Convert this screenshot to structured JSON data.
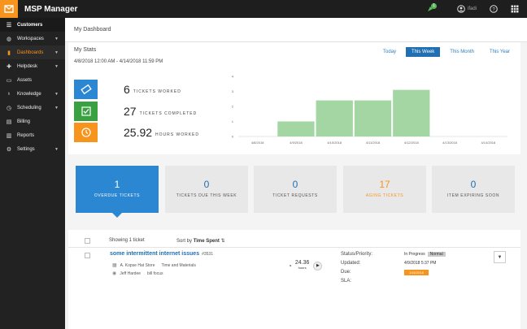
{
  "app": {
    "title": "MSP Manager",
    "notification_count": "1",
    "user_name": "ifadi"
  },
  "sidebar": {
    "items": [
      {
        "label": "Customers",
        "icon": "list-icon",
        "type": "header"
      },
      {
        "label": "Workspaces",
        "icon": "globe-icon",
        "chev": true
      },
      {
        "label": "Dashboards",
        "icon": "bar-chart-icon",
        "chev": true,
        "active": true
      },
      {
        "label": "Helpdesk",
        "icon": "ticket-icon",
        "chev": true
      },
      {
        "label": "Assets",
        "icon": "monitor-icon"
      },
      {
        "label": "Knowledge",
        "icon": "lightbulb-icon",
        "chev": true
      },
      {
        "label": "Scheduling",
        "icon": "clock-icon",
        "chev": true
      },
      {
        "label": "Billing",
        "icon": "card-icon"
      },
      {
        "label": "Reports",
        "icon": "report-icon"
      },
      {
        "label": "Settings",
        "icon": "gear-icon",
        "chev": true
      }
    ]
  },
  "page": {
    "title": "My Dashboard"
  },
  "stats": {
    "title": "My Stats",
    "date_range": "4/8/2018 12:00 AM - 4/14/2018 11:59 PM",
    "periods": [
      "Today",
      "This Week",
      "This Month",
      "This Year"
    ],
    "active_period": "This Week",
    "tickets_worked": {
      "value": "6",
      "label": "TICKETS WORKED"
    },
    "tickets_completed": {
      "value": "27",
      "label": "TICKETS COMPLETED"
    },
    "hours_worked": {
      "value": "25.92",
      "label": "HOURS WORKED"
    }
  },
  "chart_data": {
    "type": "bar",
    "categories": [
      "4/8/2018",
      "4/9/2018",
      "4/10/2018",
      "4/11/2018",
      "4/12/2018",
      "4/13/2018",
      "4/14/2018"
    ],
    "values": [
      0,
      1.0,
      2.4,
      2.4,
      3.1,
      0,
      0
    ],
    "yticks": [
      "0",
      "1",
      "2",
      "3",
      "4"
    ],
    "ylim": [
      0,
      4
    ],
    "color": "#a3d6a3"
  },
  "cards": [
    {
      "value": "1",
      "label": "OVERDUE TICKETS",
      "state": "active"
    },
    {
      "value": "0",
      "label": "TICKETS DUE THIS WEEK",
      "state": ""
    },
    {
      "value": "0",
      "label": "TICKET REQUESTS",
      "state": ""
    },
    {
      "value": "17",
      "label": "AGING TICKETS",
      "state": "orange"
    },
    {
      "value": "0",
      "label": "ITEM EXPIRING SOON",
      "state": ""
    }
  ],
  "list": {
    "showing": "Showing 1 ticket",
    "sort_prefix": "Sort by",
    "sort_field": "Time Spent",
    "ticket": {
      "title": "some intermittent internet issues",
      "id": "#3531",
      "customer": "A. Kopse Hat Store",
      "billing": "Time and Materials",
      "assignee": "Jeff Hardee",
      "tag": "bill focus",
      "time_value": "24.36",
      "time_unit": "hours",
      "status_label": "Status/Priority:",
      "status": "In Progress",
      "priority": "Normal",
      "updated_label": "Updated:",
      "updated": "4/9/2018 5:37 PM",
      "due_label": "Due:",
      "due": "1/16/2018",
      "sla_label": "SLA:"
    }
  }
}
